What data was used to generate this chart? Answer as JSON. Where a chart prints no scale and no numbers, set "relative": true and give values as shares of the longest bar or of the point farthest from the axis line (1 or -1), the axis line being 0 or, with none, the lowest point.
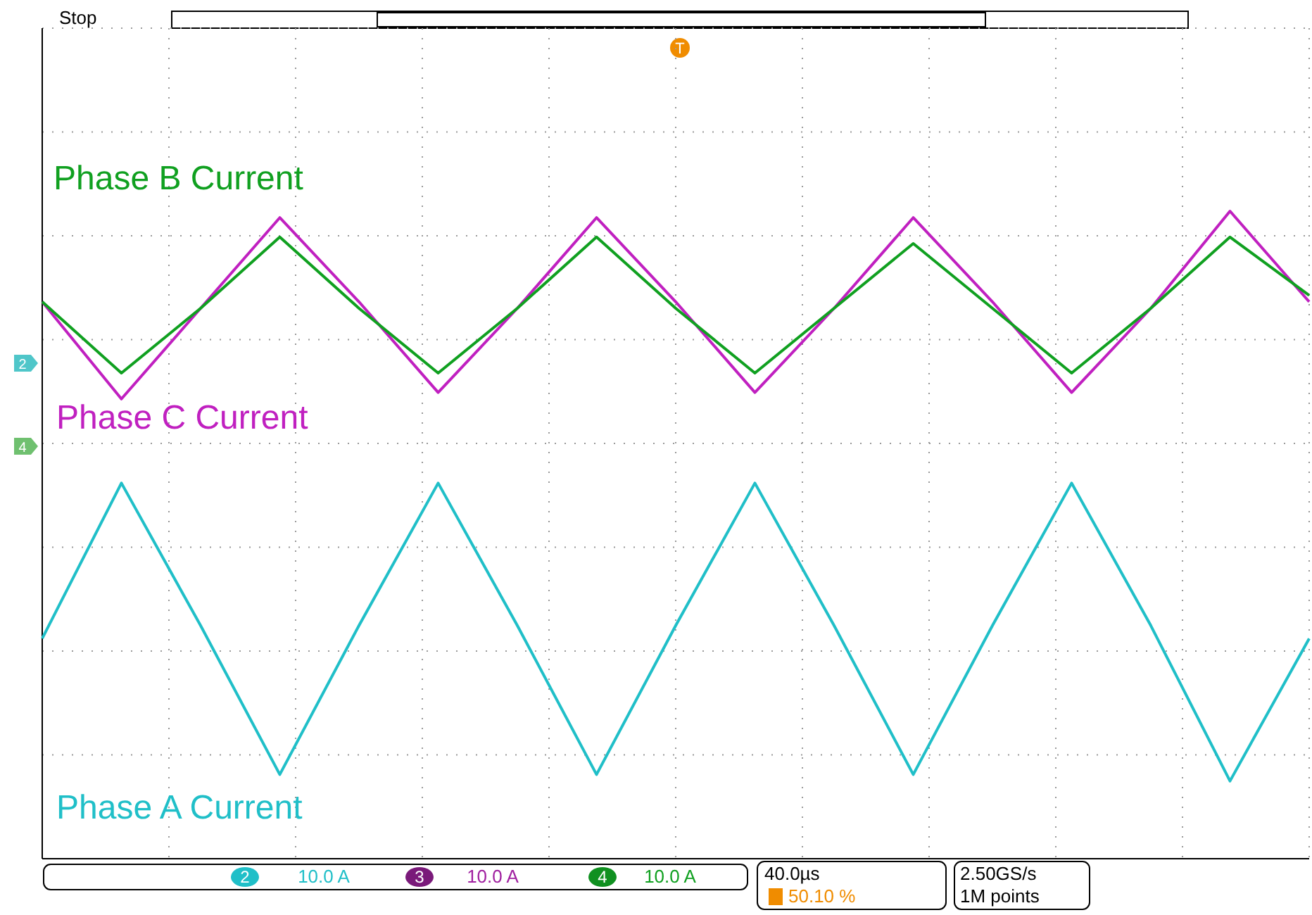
{
  "chart_data": {
    "type": "line",
    "relative": true,
    "grid": true,
    "legend": "left",
    "marker": "none",
    "line_style": "solid",
    "categories": [
      null,
      null,
      null,
      null,
      null,
      null,
      null,
      null,
      null,
      null,
      null,
      null,
      null,
      null,
      null,
      null,
      null
    ],
    "series": [
      {
        "name": "Phase C Current",
        "color": "#c020c0",
        "values": [
          0.86,
          0.71,
          0.85,
          0.99,
          0.86,
          0.72,
          0.85,
          0.99,
          0.86,
          0.72,
          0.85,
          0.99,
          0.86,
          0.72,
          0.85,
          1,
          0.86
        ]
      },
      {
        "name": "Phase B Current",
        "color": "#10a020",
        "values": [
          0.86,
          0.75,
          0.85,
          0.96,
          0.85,
          0.75,
          0.85,
          0.96,
          0.85,
          0.75,
          0.85,
          0.95,
          0.85,
          0.75,
          0.85,
          0.96,
          0.87
        ]
      },
      {
        "name": "Phase A Current",
        "color": "#20bfc8",
        "values": [
          0.34,
          0.58,
          0.36,
          0.13,
          0.36,
          0.58,
          0.36,
          0.13,
          0.36,
          0.58,
          0.36,
          0.13,
          0.36,
          0.58,
          0.36,
          0.12,
          0.34
        ]
      }
    ],
    "annotations": [
      "Stop",
      "T",
      "2",
      "4",
      "2",
      "10.0 A",
      "3",
      "10.0 A",
      "4",
      "10.0 A",
      "40.0µs",
      "50.10 %",
      "2.50GS/s",
      "1M points"
    ]
  }
}
